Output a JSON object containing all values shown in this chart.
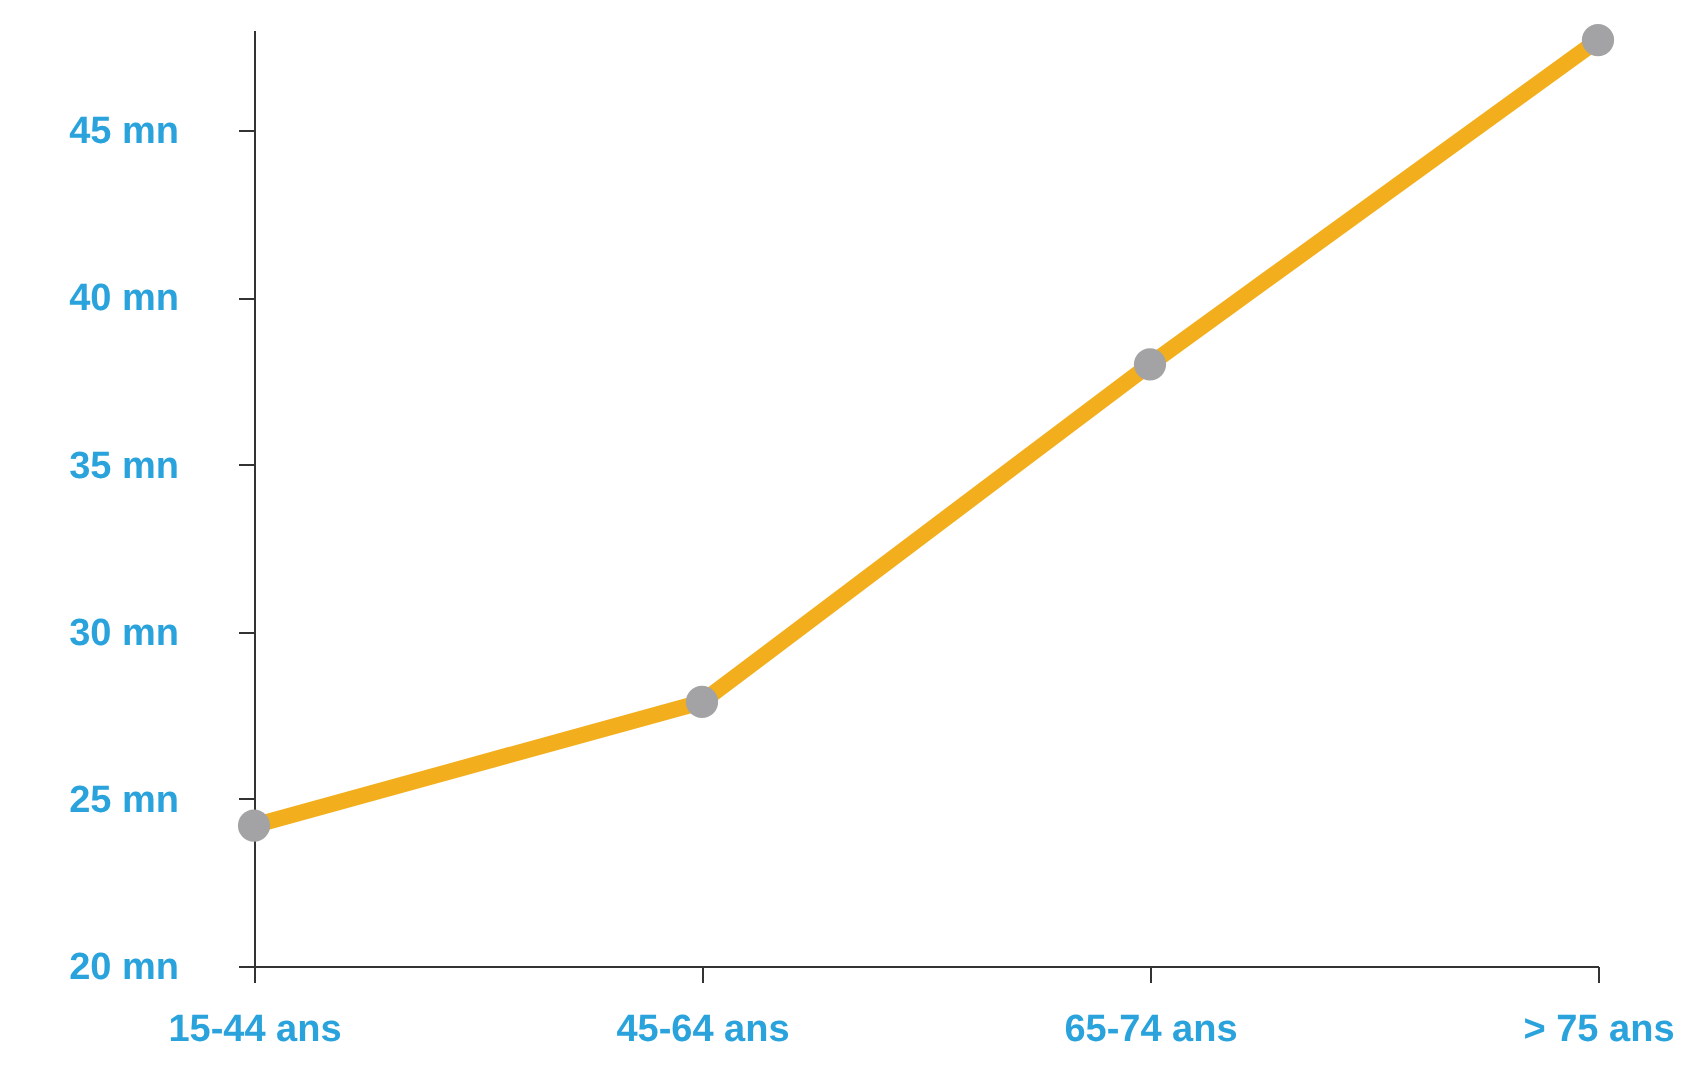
{
  "chart_data": {
    "type": "line",
    "categories": [
      "15-44 ans",
      "45-64 ans",
      "65-74 ans",
      "> 75 ans"
    ],
    "series": [
      {
        "color": "#f2ae1c",
        "values": [
          24.2,
          27.9,
          38,
          47.7
        ]
      }
    ],
    "ylim": [
      20,
      48
    ],
    "yticks": [
      {
        "value": 20,
        "label": "20 mn"
      },
      {
        "value": 25,
        "label": "25 mn"
      },
      {
        "value": 30,
        "label": "30 mn"
      },
      {
        "value": 35,
        "label": "35 mn"
      },
      {
        "value": 40,
        "label": "40 mn"
      },
      {
        "value": 45,
        "label": "45 mn"
      }
    ],
    "grid": false,
    "marker": "circle",
    "line_style": "solid"
  }
}
